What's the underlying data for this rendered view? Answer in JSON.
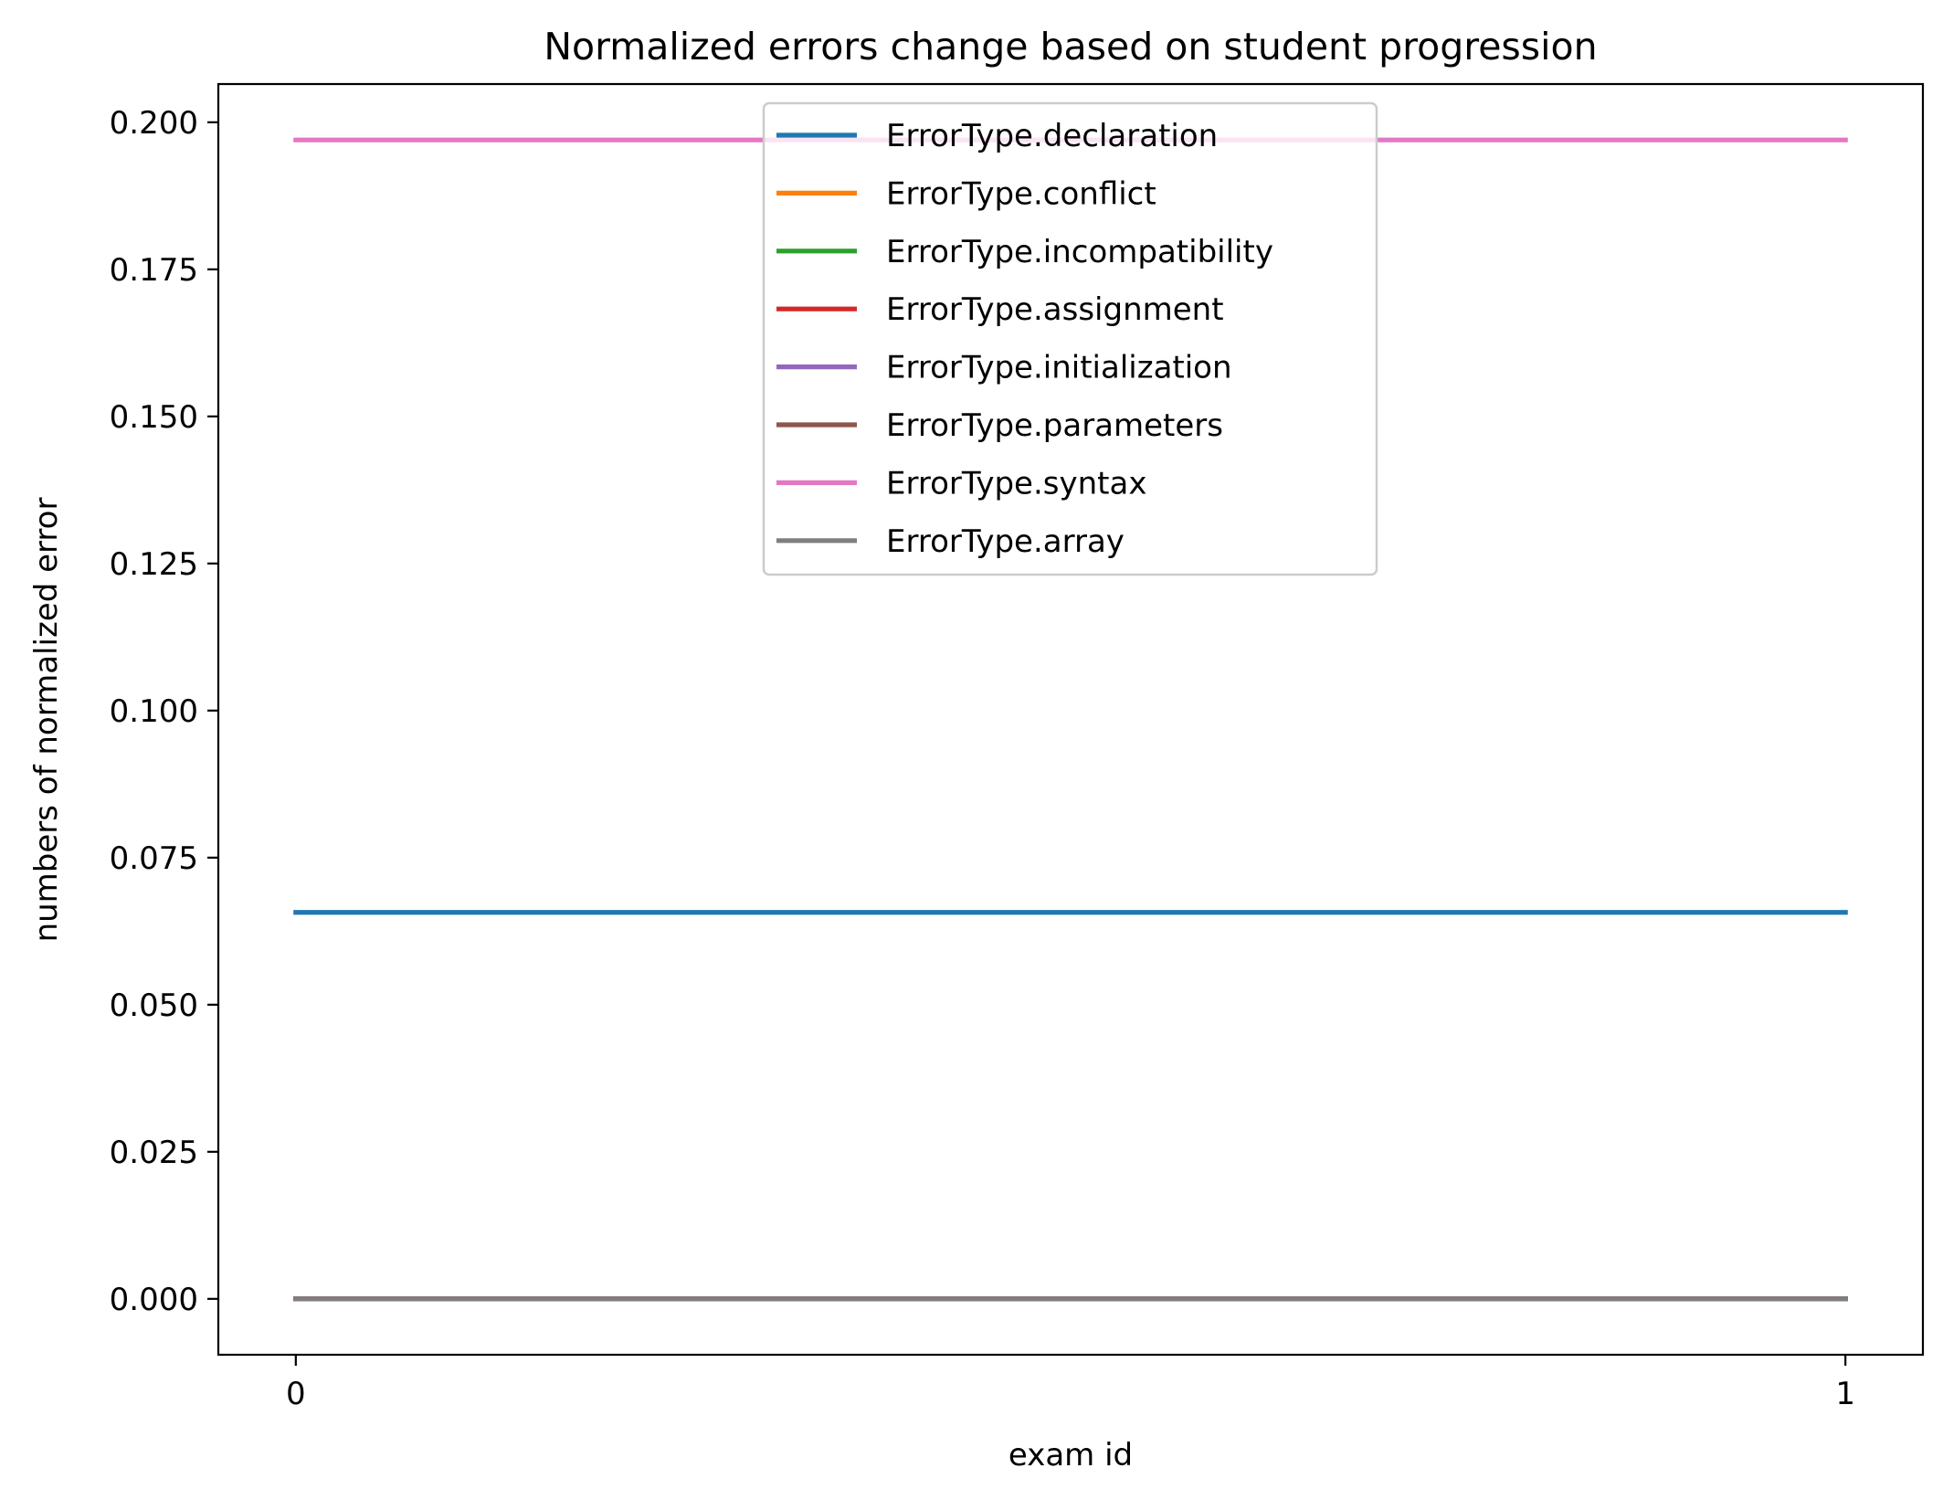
{
  "chart_data": {
    "type": "line",
    "title": "Normalized errors change based on student progression",
    "xlabel": "exam id",
    "ylabel": "numbers of normalized error",
    "x": [
      0,
      1
    ],
    "x_ticks": [
      "0",
      "1"
    ],
    "xlim": [
      -0.05,
      1.05
    ],
    "ylim": [
      -0.0095,
      0.2065
    ],
    "y_ticks": [
      "0.000",
      "0.025",
      "0.050",
      "0.075",
      "0.100",
      "0.125",
      "0.150",
      "0.175",
      "0.200"
    ],
    "grid": false,
    "legend_position": "upper center",
    "series": [
      {
        "name": "ErrorType.declaration",
        "color": "#1f77b4",
        "values": [
          0.0657,
          0.0657
        ]
      },
      {
        "name": "ErrorType.conflict",
        "color": "#ff7f0e",
        "values": [
          0.0,
          0.0
        ]
      },
      {
        "name": "ErrorType.incompatibility",
        "color": "#2ca02c",
        "values": [
          0.0,
          0.0
        ]
      },
      {
        "name": "ErrorType.assignment",
        "color": "#d62728",
        "values": [
          0.0,
          0.0
        ]
      },
      {
        "name": "ErrorType.initialization",
        "color": "#9467bd",
        "values": [
          0.0,
          0.0
        ]
      },
      {
        "name": "ErrorType.parameters",
        "color": "#8c564b",
        "values": [
          0.0,
          0.0
        ]
      },
      {
        "name": "ErrorType.syntax",
        "color": "#e377c2",
        "values": [
          0.197,
          0.197
        ]
      },
      {
        "name": "ErrorType.array",
        "color": "#7f7f7f",
        "values": [
          0.0,
          0.0
        ]
      }
    ]
  }
}
